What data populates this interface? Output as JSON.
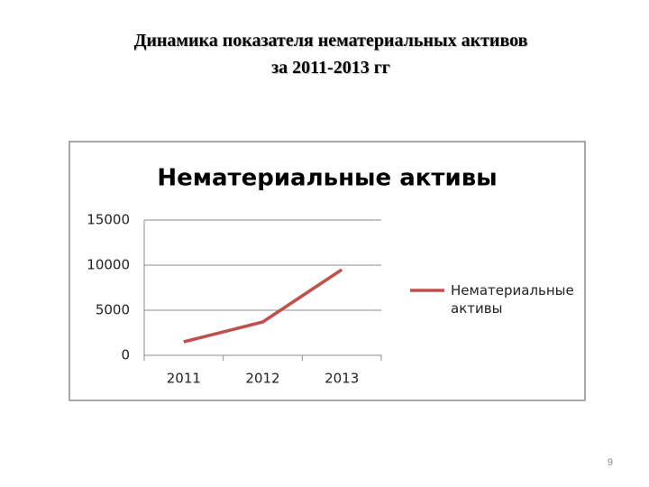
{
  "slide_title": [
    "Динамика показателя нематериальных активов",
    "за 2011-2013 гг"
  ],
  "page_number": 9,
  "chart_data": {
    "type": "line",
    "title": "Нематериальные активы",
    "categories": [
      "2011",
      "2012",
      "2013"
    ],
    "series": [
      {
        "name": "Нематериальные активы",
        "color": "#c0504d",
        "values": [
          1500,
          3700,
          9500
        ]
      }
    ],
    "ylim": [
      0,
      15000
    ],
    "yticks": [
      0,
      5000,
      10000,
      15000
    ],
    "grid": true,
    "legend": "right"
  }
}
